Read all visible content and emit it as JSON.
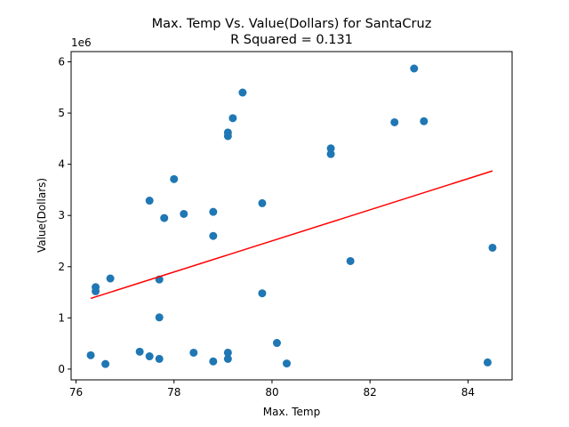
{
  "chart_data": {
    "type": "scatter",
    "title_line1": "Max. Temp Vs. Value(Dollars) for SantaCruz",
    "title_line2": "R Squared =  0.131",
    "xlabel": "Max. Temp",
    "ylabel": "Value(Dollars)",
    "y_offset_label": "1e6",
    "xlim": [
      75.9,
      84.9
    ],
    "ylim": [
      -0.21,
      6.2
    ],
    "x_ticks": [
      76,
      78,
      80,
      82,
      84
    ],
    "y_ticks": [
      0,
      1,
      2,
      3,
      4,
      5,
      6
    ],
    "grid": false,
    "points": [
      {
        "x": 76.3,
        "y": 0.27
      },
      {
        "x": 76.4,
        "y": 1.6
      },
      {
        "x": 76.4,
        "y": 1.52
      },
      {
        "x": 76.6,
        "y": 0.1
      },
      {
        "x": 76.7,
        "y": 1.77
      },
      {
        "x": 77.3,
        "y": 0.34
      },
      {
        "x": 77.5,
        "y": 0.25
      },
      {
        "x": 77.5,
        "y": 3.29
      },
      {
        "x": 77.7,
        "y": 0.2
      },
      {
        "x": 77.7,
        "y": 1.01
      },
      {
        "x": 77.7,
        "y": 1.75
      },
      {
        "x": 77.8,
        "y": 2.95
      },
      {
        "x": 78.0,
        "y": 3.71
      },
      {
        "x": 78.2,
        "y": 3.03
      },
      {
        "x": 78.4,
        "y": 0.32
      },
      {
        "x": 78.8,
        "y": 0.15
      },
      {
        "x": 78.8,
        "y": 2.6
      },
      {
        "x": 78.8,
        "y": 3.07
      },
      {
        "x": 79.1,
        "y": 0.32
      },
      {
        "x": 79.1,
        "y": 0.2
      },
      {
        "x": 79.1,
        "y": 4.55
      },
      {
        "x": 79.1,
        "y": 4.62
      },
      {
        "x": 79.2,
        "y": 4.9
      },
      {
        "x": 79.4,
        "y": 5.4
      },
      {
        "x": 79.8,
        "y": 3.24
      },
      {
        "x": 79.8,
        "y": 1.48
      },
      {
        "x": 80.1,
        "y": 0.51
      },
      {
        "x": 80.3,
        "y": 0.11
      },
      {
        "x": 81.2,
        "y": 4.31
      },
      {
        "x": 81.2,
        "y": 4.2
      },
      {
        "x": 81.6,
        "y": 2.11
      },
      {
        "x": 82.5,
        "y": 4.82
      },
      {
        "x": 82.9,
        "y": 5.87
      },
      {
        "x": 83.1,
        "y": 4.84
      },
      {
        "x": 84.4,
        "y": 0.13
      },
      {
        "x": 84.5,
        "y": 2.37
      }
    ],
    "regression": {
      "x": [
        76.3,
        84.5
      ],
      "y": [
        1.38,
        3.87
      ]
    },
    "colors": {
      "points": "#1f77b4",
      "regression": "#ff0000"
    }
  }
}
